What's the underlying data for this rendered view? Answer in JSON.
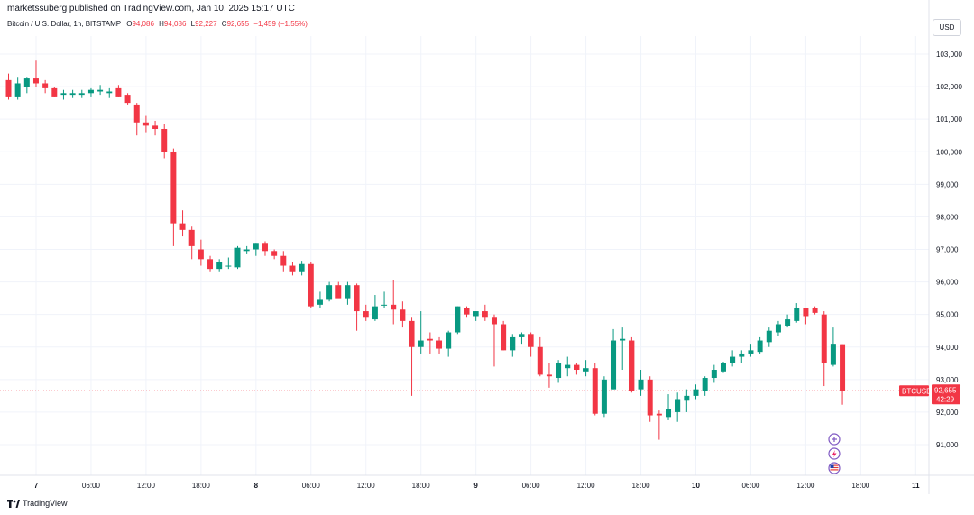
{
  "header": {
    "publisher": "marketssuberg published on TradingView.com, Jan 10, 2025 15:17 UTC",
    "symbol_line": "Bitcoin / U.S. Dollar, 1h, BITSTAMP",
    "ohlc": {
      "o_label": "O",
      "o_value": "94,086",
      "h_label": "H",
      "h_value": "94,086",
      "l_label": "L",
      "l_value": "92,227",
      "c_label": "C",
      "c_value": "92,655",
      "change": "−1,459 (−1.55%)"
    },
    "currency_button": "USD"
  },
  "footer": {
    "brand": "TradingView"
  },
  "price_tag": {
    "symbol": "BTCUSD",
    "price": "92,655",
    "countdown": "42:29"
  },
  "chart_data": {
    "type": "candlestick",
    "ylim": [
      90000,
      103500
    ],
    "y_ticks": [
      91000,
      92000,
      93000,
      94000,
      95000,
      96000,
      97000,
      98000,
      99000,
      100000,
      101000,
      102000,
      103000
    ],
    "y_tick_labels": [
      "91,000",
      "92,000",
      "93,000",
      "94,000",
      "95,000",
      "96,000",
      "97,000",
      "98,000",
      "99,000",
      "100,000",
      "101,000",
      "102,000",
      "103,000"
    ],
    "x_ticks": [
      {
        "label": "7",
        "bar": 3,
        "bold": true
      },
      {
        "label": "06:00",
        "bar": 9
      },
      {
        "label": "12:00",
        "bar": 15
      },
      {
        "label": "18:00",
        "bar": 21
      },
      {
        "label": "8",
        "bar": 27,
        "bold": true
      },
      {
        "label": "06:00",
        "bar": 33
      },
      {
        "label": "12:00",
        "bar": 39
      },
      {
        "label": "18:00",
        "bar": 45
      },
      {
        "label": "9",
        "bar": 51,
        "bold": true
      },
      {
        "label": "06:00",
        "bar": 57
      },
      {
        "label": "12:00",
        "bar": 63
      },
      {
        "label": "18:00",
        "bar": 69
      },
      {
        "label": "10",
        "bar": 75,
        "bold": true
      },
      {
        "label": "06:00",
        "bar": 81
      },
      {
        "label": "12:00",
        "bar": 87
      },
      {
        "label": "18:00",
        "bar": 93
      },
      {
        "label": "11",
        "bar": 99,
        "bold": true
      }
    ],
    "last_price": 92655,
    "up_color": "#089981",
    "down_color": "#f23645",
    "candles": [
      {
        "o": 102200,
        "h": 102400,
        "l": 101600,
        "c": 101700
      },
      {
        "o": 101700,
        "h": 102300,
        "l": 101600,
        "c": 102100
      },
      {
        "o": 102000,
        "h": 102300,
        "l": 101800,
        "c": 102250
      },
      {
        "o": 102250,
        "h": 102800,
        "l": 102000,
        "c": 102100
      },
      {
        "o": 102100,
        "h": 102200,
        "l": 101800,
        "c": 101950
      },
      {
        "o": 101950,
        "h": 102000,
        "l": 101700,
        "c": 101700
      },
      {
        "o": 101750,
        "h": 101900,
        "l": 101600,
        "c": 101800
      },
      {
        "o": 101750,
        "h": 101900,
        "l": 101650,
        "c": 101800
      },
      {
        "o": 101750,
        "h": 101900,
        "l": 101650,
        "c": 101800
      },
      {
        "o": 101800,
        "h": 101950,
        "l": 101700,
        "c": 101900
      },
      {
        "o": 101850,
        "h": 102050,
        "l": 101750,
        "c": 101900
      },
      {
        "o": 101800,
        "h": 101950,
        "l": 101650,
        "c": 101850
      },
      {
        "o": 101950,
        "h": 102050,
        "l": 101700,
        "c": 101700
      },
      {
        "o": 101750,
        "h": 101800,
        "l": 101450,
        "c": 101500
      },
      {
        "o": 101450,
        "h": 101500,
        "l": 100500,
        "c": 100900
      },
      {
        "o": 100900,
        "h": 101100,
        "l": 100600,
        "c": 100800
      },
      {
        "o": 100800,
        "h": 100950,
        "l": 100500,
        "c": 100700
      },
      {
        "o": 100700,
        "h": 100850,
        "l": 99800,
        "c": 100000
      },
      {
        "o": 100000,
        "h": 100100,
        "l": 97100,
        "c": 97800
      },
      {
        "o": 97800,
        "h": 98200,
        "l": 97400,
        "c": 97600
      },
      {
        "o": 97600,
        "h": 97700,
        "l": 96700,
        "c": 97100
      },
      {
        "o": 97000,
        "h": 97300,
        "l": 96500,
        "c": 96700
      },
      {
        "o": 96700,
        "h": 96800,
        "l": 96300,
        "c": 96400
      },
      {
        "o": 96400,
        "h": 96700,
        "l": 96300,
        "c": 96600
      },
      {
        "o": 96500,
        "h": 96750,
        "l": 96400,
        "c": 96500
      },
      {
        "o": 96450,
        "h": 97100,
        "l": 96400,
        "c": 97050
      },
      {
        "o": 96950,
        "h": 97100,
        "l": 96850,
        "c": 97000
      },
      {
        "o": 97000,
        "h": 97200,
        "l": 96800,
        "c": 97200
      },
      {
        "o": 97200,
        "h": 97250,
        "l": 96800,
        "c": 96950
      },
      {
        "o": 96950,
        "h": 97000,
        "l": 96700,
        "c": 96800
      },
      {
        "o": 96800,
        "h": 96950,
        "l": 96300,
        "c": 96500
      },
      {
        "o": 96500,
        "h": 96600,
        "l": 96200,
        "c": 96300
      },
      {
        "o": 96300,
        "h": 96650,
        "l": 96200,
        "c": 96550
      },
      {
        "o": 96550,
        "h": 96600,
        "l": 95200,
        "c": 95250
      },
      {
        "o": 95300,
        "h": 95700,
        "l": 95200,
        "c": 95450
      },
      {
        "o": 95450,
        "h": 96000,
        "l": 95400,
        "c": 95900
      },
      {
        "o": 95900,
        "h": 96000,
        "l": 95600,
        "c": 95500
      },
      {
        "o": 95500,
        "h": 96000,
        "l": 95300,
        "c": 95900
      },
      {
        "o": 95900,
        "h": 95950,
        "l": 94500,
        "c": 95100
      },
      {
        "o": 95100,
        "h": 95300,
        "l": 94800,
        "c": 94900
      },
      {
        "o": 94850,
        "h": 95600,
        "l": 94800,
        "c": 95250
      },
      {
        "o": 95300,
        "h": 95700,
        "l": 95200,
        "c": 95300
      },
      {
        "o": 95300,
        "h": 96050,
        "l": 94700,
        "c": 95150
      },
      {
        "o": 95150,
        "h": 95400,
        "l": 94600,
        "c": 94800
      },
      {
        "o": 94800,
        "h": 94900,
        "l": 92500,
        "c": 94000
      },
      {
        "o": 94000,
        "h": 95100,
        "l": 93800,
        "c": 94200
      },
      {
        "o": 94250,
        "h": 94450,
        "l": 93800,
        "c": 94200
      },
      {
        "o": 94200,
        "h": 94300,
        "l": 93800,
        "c": 93950
      },
      {
        "o": 93950,
        "h": 94500,
        "l": 93700,
        "c": 94450
      },
      {
        "o": 94450,
        "h": 95250,
        "l": 94400,
        "c": 95250
      },
      {
        "o": 95200,
        "h": 95250,
        "l": 94900,
        "c": 95000
      },
      {
        "o": 94950,
        "h": 95100,
        "l": 94800,
        "c": 95100
      },
      {
        "o": 95100,
        "h": 95300,
        "l": 94800,
        "c": 94900
      },
      {
        "o": 94900,
        "h": 95000,
        "l": 93400,
        "c": 94700
      },
      {
        "o": 94700,
        "h": 94800,
        "l": 93900,
        "c": 93900
      },
      {
        "o": 93900,
        "h": 94400,
        "l": 93700,
        "c": 94300
      },
      {
        "o": 94300,
        "h": 94450,
        "l": 94100,
        "c": 94400
      },
      {
        "o": 94400,
        "h": 94450,
        "l": 93700,
        "c": 94000
      },
      {
        "o": 94000,
        "h": 94300,
        "l": 93100,
        "c": 93150
      },
      {
        "o": 93150,
        "h": 93500,
        "l": 92750,
        "c": 93100
      },
      {
        "o": 93050,
        "h": 93600,
        "l": 92900,
        "c": 93500
      },
      {
        "o": 93350,
        "h": 93700,
        "l": 93100,
        "c": 93450
      },
      {
        "o": 93450,
        "h": 93500,
        "l": 93150,
        "c": 93300
      },
      {
        "o": 93250,
        "h": 93600,
        "l": 93100,
        "c": 93350
      },
      {
        "o": 93350,
        "h": 93500,
        "l": 91900,
        "c": 91950
      },
      {
        "o": 91950,
        "h": 93100,
        "l": 91850,
        "c": 93000
      },
      {
        "o": 92700,
        "h": 94550,
        "l": 92700,
        "c": 94200
      },
      {
        "o": 94200,
        "h": 94600,
        "l": 93300,
        "c": 94250
      },
      {
        "o": 94200,
        "h": 94300,
        "l": 92600,
        "c": 92650
      },
      {
        "o": 92700,
        "h": 93300,
        "l": 92500,
        "c": 93000
      },
      {
        "o": 93000,
        "h": 93100,
        "l": 91700,
        "c": 91900
      },
      {
        "o": 91950,
        "h": 92050,
        "l": 91150,
        "c": 91900
      },
      {
        "o": 91850,
        "h": 92550,
        "l": 91750,
        "c": 92100
      },
      {
        "o": 92000,
        "h": 92600,
        "l": 91700,
        "c": 92400
      },
      {
        "o": 92350,
        "h": 92700,
        "l": 92000,
        "c": 92500
      },
      {
        "o": 92500,
        "h": 92850,
        "l": 92400,
        "c": 92700
      },
      {
        "o": 92650,
        "h": 93100,
        "l": 92500,
        "c": 93050
      },
      {
        "o": 93050,
        "h": 93450,
        "l": 92900,
        "c": 93300
      },
      {
        "o": 93250,
        "h": 93550,
        "l": 93200,
        "c": 93500
      },
      {
        "o": 93500,
        "h": 93900,
        "l": 93400,
        "c": 93700
      },
      {
        "o": 93700,
        "h": 93900,
        "l": 93500,
        "c": 93800
      },
      {
        "o": 93800,
        "h": 94100,
        "l": 93700,
        "c": 93900
      },
      {
        "o": 93850,
        "h": 94300,
        "l": 93800,
        "c": 94200
      },
      {
        "o": 94150,
        "h": 94600,
        "l": 94000,
        "c": 94500
      },
      {
        "o": 94450,
        "h": 94800,
        "l": 94350,
        "c": 94700
      },
      {
        "o": 94650,
        "h": 95000,
        "l": 94600,
        "c": 94850
      },
      {
        "o": 94800,
        "h": 95350,
        "l": 94750,
        "c": 95200
      },
      {
        "o": 95200,
        "h": 95200,
        "l": 94700,
        "c": 94950
      },
      {
        "o": 95200,
        "h": 95250,
        "l": 95000,
        "c": 95050
      },
      {
        "o": 95000,
        "h": 95100,
        "l": 92800,
        "c": 93500
      },
      {
        "o": 93450,
        "h": 94600,
        "l": 93400,
        "c": 94100
      },
      {
        "o": 94086,
        "h": 94086,
        "l": 92227,
        "c": 92655
      }
    ]
  }
}
